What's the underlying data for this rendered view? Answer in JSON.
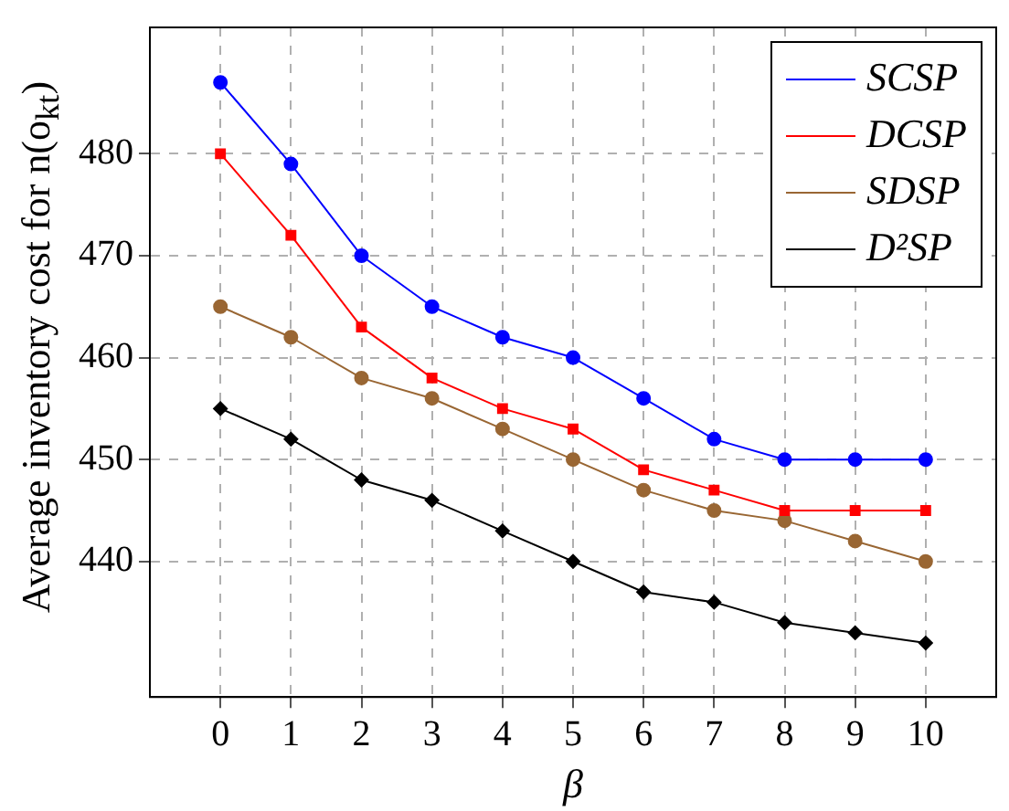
{
  "chart_data": {
    "type": "line",
    "xlabel": "β",
    "ylabel": "Average inventory cost for n(o$_{kt}$)",
    "x": [
      0,
      1,
      2,
      3,
      4,
      5,
      6,
      7,
      8,
      9,
      10
    ],
    "series": [
      {
        "name": "SCSP",
        "color": "#0000ff",
        "marker": "circle",
        "values": [
          487,
          479,
          470,
          465,
          462,
          460,
          456,
          452,
          450,
          450,
          450
        ]
      },
      {
        "name": "DCSP",
        "color": "#ff0000",
        "marker": "square",
        "values": [
          480,
          472,
          463,
          458,
          455,
          453,
          449,
          447,
          445,
          445,
          445
        ]
      },
      {
        "name": "SDSP",
        "color": "#996633",
        "marker": "circle",
        "values": [
          465,
          462,
          458,
          456,
          453,
          450,
          447,
          445,
          444,
          442,
          440
        ]
      },
      {
        "name": "D²SP",
        "color": "#000000",
        "marker": "diamond",
        "values": [
          455,
          452,
          448,
          446,
          443,
          440,
          437,
          436,
          434,
          433,
          432
        ]
      }
    ],
    "xlim": [
      -1,
      11
    ],
    "xticks": [
      0,
      1,
      2,
      3,
      4,
      5,
      6,
      7,
      8,
      9,
      10
    ],
    "ylim": [
      426.7,
      492.4
    ],
    "yticks": [
      440,
      450,
      460,
      470,
      480
    ],
    "grid": true,
    "legend": "top right",
    "line_style": "solid"
  }
}
